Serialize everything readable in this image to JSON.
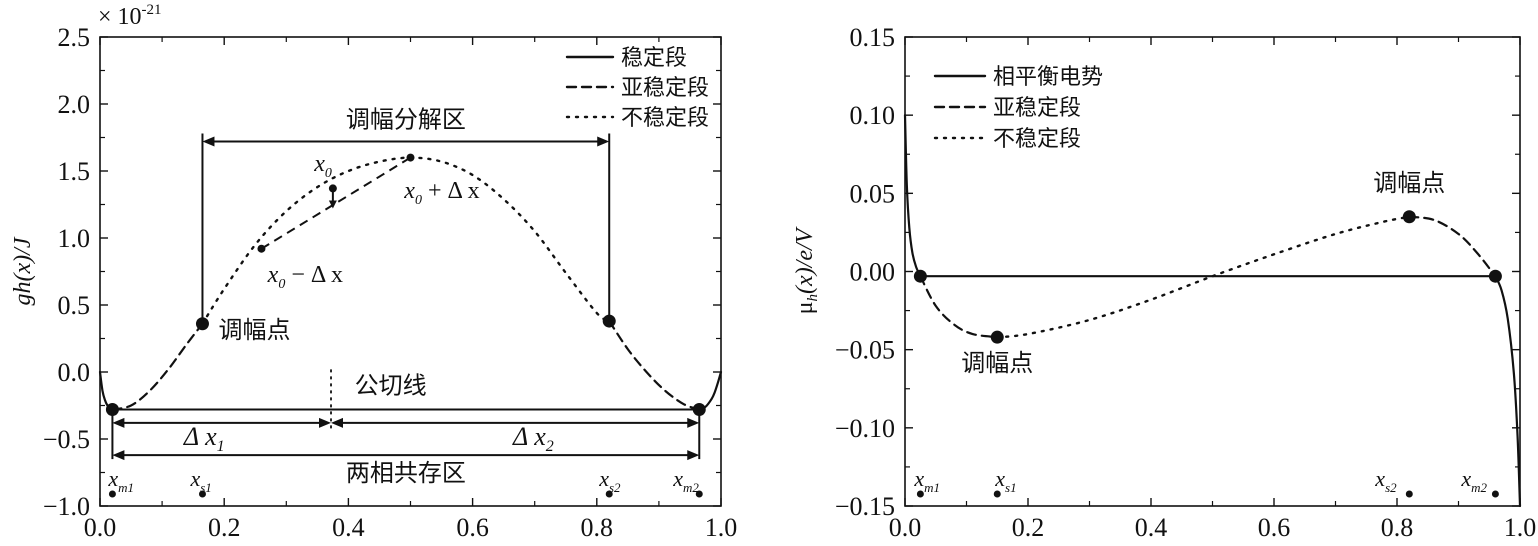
{
  "chart_data": [
    {
      "type": "line",
      "title": "",
      "xlabel": "",
      "ylabel": "gh(x)/J",
      "y_exponent_label": "× 10",
      "y_exponent_power": "-21",
      "xlim": [
        0.0,
        1.0
      ],
      "ylim": [
        -1.0,
        2.5
      ],
      "xticks": [
        0.0,
        0.2,
        0.4,
        0.6,
        0.8,
        1.0
      ],
      "xtick_labels": [
        "0.0",
        "0.2",
        "0.4",
        "0.6",
        "0.8",
        "1.0"
      ],
      "yticks": [
        -1.0,
        -0.5,
        0.0,
        0.5,
        1.0,
        1.5,
        2.0,
        2.5
      ],
      "ytick_labels": [
        "−1.0",
        "−0.5",
        "0.0",
        "0.5",
        "1.0",
        "1.5",
        "2.0",
        "2.5"
      ],
      "legend_position": "top-right",
      "legend": [
        {
          "label": "稳定段",
          "style": "solid"
        },
        {
          "label": "亚稳定段",
          "style": "dashed"
        },
        {
          "label": "不稳定段",
          "style": "dotted"
        }
      ],
      "series": [
        {
          "style": "solid",
          "x": [
            0.0,
            0.004,
            0.008,
            0.012,
            0.016,
            0.02
          ],
          "y": [
            0.0,
            -0.14,
            -0.21,
            -0.25,
            -0.27,
            -0.28
          ]
        },
        {
          "style": "dashed",
          "x": [
            0.02,
            0.05,
            0.08,
            0.11,
            0.14,
            0.165
          ],
          "y": [
            -0.28,
            -0.25,
            -0.14,
            0.02,
            0.21,
            0.36
          ]
        },
        {
          "style": "dotted",
          "x": [
            0.165,
            0.2,
            0.25,
            0.3,
            0.35,
            0.4,
            0.45,
            0.5,
            0.55,
            0.6,
            0.65,
            0.7,
            0.75,
            0.8,
            0.82
          ],
          "y": [
            0.36,
            0.62,
            0.95,
            1.2,
            1.38,
            1.5,
            1.57,
            1.6,
            1.57,
            1.47,
            1.29,
            1.05,
            0.74,
            0.44,
            0.38
          ]
        },
        {
          "style": "dashed",
          "x": [
            0.82,
            0.85,
            0.88,
            0.91,
            0.94,
            0.965
          ],
          "y": [
            0.38,
            0.17,
            0.0,
            -0.14,
            -0.24,
            -0.28
          ]
        },
        {
          "style": "solid",
          "x": [
            0.965,
            0.975,
            0.985,
            0.99,
            0.995,
            1.0
          ],
          "y": [
            -0.28,
            -0.26,
            -0.2,
            -0.15,
            -0.08,
            0.0
          ]
        }
      ],
      "points": [
        {
          "x": 0.02,
          "y": -0.28
        },
        {
          "x": 0.165,
          "y": 0.36
        },
        {
          "x": 0.82,
          "y": 0.38
        },
        {
          "x": 0.965,
          "y": -0.28
        },
        {
          "x": 0.26,
          "y": 0.92
        },
        {
          "x": 0.375,
          "y": 1.37
        },
        {
          "x": 0.5,
          "y": 1.6
        }
      ],
      "bottom_markers": [
        {
          "x": 0.02,
          "label": "x",
          "sub": "m1"
        },
        {
          "x": 0.165,
          "label": "x",
          "sub": "s1"
        },
        {
          "x": 0.82,
          "label": "x",
          "sub": "s2"
        },
        {
          "x": 0.965,
          "label": "x",
          "sub": "m2"
        }
      ],
      "annotations": {
        "spinodal_region": "调幅分解区",
        "spinodal_point": "调幅点",
        "common_tangent": "公切线",
        "two_phase_region": "两相共存区",
        "x0": "x",
        "x0_sub": "0",
        "x0_plus": "x",
        "x0_plus_sub": "0",
        "x0_plus_rest": "+ Δ x",
        "x0_minus": "x",
        "x0_minus_sub": "0",
        "x0_minus_rest": "− Δ x",
        "dx1": "Δ x",
        "dx1_sub": "1",
        "dx2": "Δ x",
        "dx2_sub": "2"
      }
    },
    {
      "type": "line",
      "title": "",
      "xlabel": "",
      "ylabel": "μh(x)/e/V",
      "ylabel_mu": "μ",
      "ylabel_sub": "h",
      "ylabel_rest": "(x)/e/V",
      "xlim": [
        0.0,
        1.0
      ],
      "ylim": [
        -0.15,
        0.15
      ],
      "xticks": [
        0.0,
        0.2,
        0.4,
        0.6,
        0.8,
        1.0
      ],
      "xtick_labels": [
        "0.0",
        "0.2",
        "0.4",
        "0.6",
        "0.8",
        "1.0"
      ],
      "yticks": [
        -0.15,
        -0.1,
        -0.05,
        0.0,
        0.05,
        0.1,
        0.15
      ],
      "ytick_labels": [
        "−0.15",
        "−0.10",
        "−0.05",
        "0.00",
        "0.05",
        "0.10",
        "0.15"
      ],
      "legend_position": "top-left",
      "legend": [
        {
          "label": "相平衡电势",
          "style": "solid"
        },
        {
          "label": "亚稳定段",
          "style": "dashed"
        },
        {
          "label": "不稳定段",
          "style": "dotted"
        }
      ],
      "series": [
        {
          "style": "solid",
          "x": [
            0.0,
            0.003,
            0.007,
            0.012,
            0.018,
            0.025
          ],
          "y": [
            0.1,
            0.055,
            0.028,
            0.012,
            0.003,
            -0.003
          ]
        },
        {
          "style": "solid",
          "x": [
            0.025,
            0.96
          ],
          "y": [
            -0.003,
            -0.003
          ]
        },
        {
          "style": "dashed",
          "x": [
            0.025,
            0.05,
            0.08,
            0.11,
            0.15
          ],
          "y": [
            -0.003,
            -0.022,
            -0.034,
            -0.04,
            -0.042
          ]
        },
        {
          "style": "dotted",
          "x": [
            0.15,
            0.2,
            0.3,
            0.4,
            0.5,
            0.6,
            0.7,
            0.78,
            0.82
          ],
          "y": [
            -0.042,
            -0.04,
            -0.031,
            -0.018,
            -0.003,
            0.011,
            0.024,
            0.032,
            0.035
          ]
        },
        {
          "style": "dashed",
          "x": [
            0.82,
            0.86,
            0.9,
            0.93,
            0.96
          ],
          "y": [
            0.035,
            0.033,
            0.024,
            0.012,
            -0.003
          ]
        },
        {
          "style": "solid",
          "x": [
            0.96,
            0.97,
            0.98,
            0.99,
            0.996,
            1.0
          ],
          "y": [
            -0.003,
            -0.012,
            -0.03,
            -0.065,
            -0.105,
            -0.15
          ]
        }
      ],
      "points": [
        {
          "x": 0.025,
          "y": -0.003
        },
        {
          "x": 0.15,
          "y": -0.042
        },
        {
          "x": 0.82,
          "y": 0.035
        },
        {
          "x": 0.96,
          "y": -0.003
        }
      ],
      "bottom_markers": [
        {
          "x": 0.025,
          "label": "x",
          "sub": "m1"
        },
        {
          "x": 0.15,
          "label": "x",
          "sub": "s1"
        },
        {
          "x": 0.82,
          "label": "x",
          "sub": "s2"
        },
        {
          "x": 0.96,
          "label": "x",
          "sub": "m2"
        }
      ],
      "annotations": {
        "spinodal_point_upper": "调幅点",
        "spinodal_point_lower": "调幅点"
      }
    }
  ]
}
